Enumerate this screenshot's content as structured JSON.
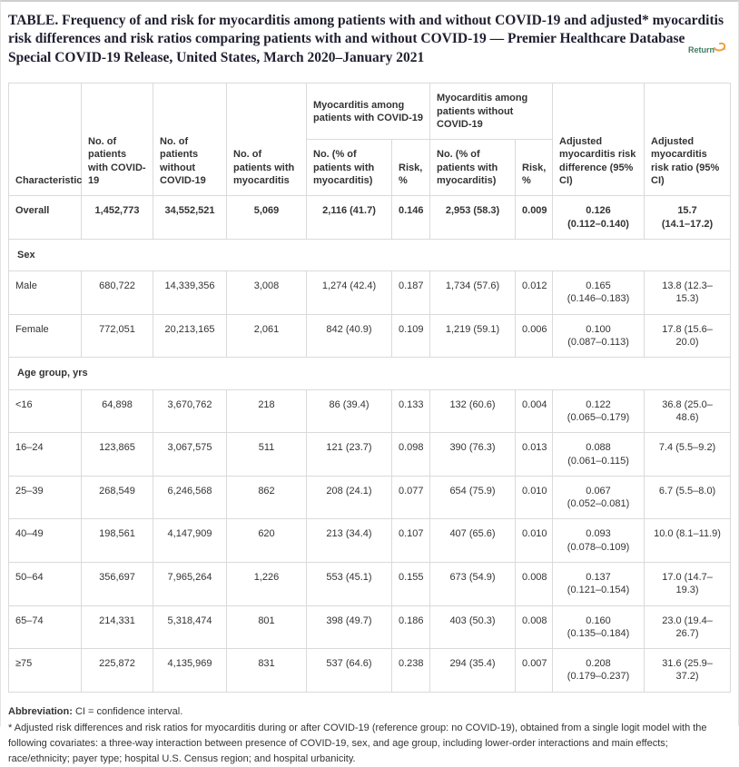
{
  "title": "TABLE. Frequency of and risk for myocarditis among patients with and without COVID-19 and adjusted* myocarditis risk differences and risk ratios comparing patients with and without COVID-19 — Premier Healthcare Database Special COVID-19 Release, United States, March 2020–January 2021",
  "return_label": "Return",
  "accent_colors": {
    "return_text": "#3f7b5e",
    "return_arrow": "#ef9f3f",
    "border": "#dadada",
    "title_text": "#1f1f30"
  },
  "table": {
    "header": {
      "characteristic": "Characteristic",
      "col_with": "No. of patients with COVID-19",
      "col_without": "No. of patients without COVID-19",
      "col_myocarditis": "No. of patients with myocarditis",
      "group_with": "Myocarditis among patients with COVID-19",
      "group_without": "Myocarditis among patients without COVID-19",
      "sub_no_pct_with": "No. (% of patients with myocarditis)",
      "sub_risk_with": "Risk, %",
      "sub_no_pct_without": "No. (% of patients with myocarditis)",
      "sub_risk_without": "Risk, %",
      "col_diff": "Adjusted myocarditis risk difference (95% CI)",
      "col_ratio": "Adjusted myocarditis risk ratio (95% CI)"
    },
    "body": [
      {
        "bold": true,
        "cells": [
          "Overall",
          "1,452,773",
          "34,552,521",
          "5,069",
          "2,116 (41.7)",
          "0.146",
          "2,953 (58.3)",
          "0.009",
          "0.126\n(0.112–0.140)",
          "15.7\n(14.1–17.2)"
        ]
      },
      {
        "section": "Sex"
      },
      {
        "cells": [
          "Male",
          "680,722",
          "14,339,356",
          "3,008",
          "1,274 (42.4)",
          "0.187",
          "1,734 (57.6)",
          "0.012",
          "0.165\n(0.146–0.183)",
          "13.8 (12.3–15.3)"
        ]
      },
      {
        "cells": [
          "Female",
          "772,051",
          "20,213,165",
          "2,061",
          "842 (40.9)",
          "0.109",
          "1,219 (59.1)",
          "0.006",
          "0.100\n(0.087–0.113)",
          "17.8 (15.6–20.0)"
        ]
      },
      {
        "section": "Age group, yrs"
      },
      {
        "cells": [
          "<16",
          "64,898",
          "3,670,762",
          "218",
          "86 (39.4)",
          "0.133",
          "132 (60.6)",
          "0.004",
          "0.122\n(0.065–0.179)",
          "36.8 (25.0–48.6)"
        ]
      },
      {
        "cells": [
          "16–24",
          "123,865",
          "3,067,575",
          "511",
          "121 (23.7)",
          "0.098",
          "390 (76.3)",
          "0.013",
          "0.088\n(0.061–0.115)",
          "7.4 (5.5–9.2)"
        ]
      },
      {
        "cells": [
          "25–39",
          "268,549",
          "6,246,568",
          "862",
          "208 (24.1)",
          "0.077",
          "654 (75.9)",
          "0.010",
          "0.067\n(0.052–0.081)",
          "6.7 (5.5–8.0)"
        ]
      },
      {
        "cells": [
          "40–49",
          "198,561",
          "4,147,909",
          "620",
          "213 (34.4)",
          "0.107",
          "407 (65.6)",
          "0.010",
          "0.093\n(0.078–0.109)",
          "10.0 (8.1–11.9)"
        ]
      },
      {
        "cells": [
          "50–64",
          "356,697",
          "7,965,264",
          "1,226",
          "553 (45.1)",
          "0.155",
          "673 (54.9)",
          "0.008",
          "0.137\n(0.121–0.154)",
          "17.0 (14.7–19.3)"
        ]
      },
      {
        "cells": [
          "65–74",
          "214,331",
          "5,318,474",
          "801",
          "398 (49.7)",
          "0.186",
          "403 (50.3)",
          "0.008",
          "0.160\n(0.135–0.184)",
          "23.0 (19.4–26.7)"
        ]
      },
      {
        "cells": [
          "≥75",
          "225,872",
          "4,135,969",
          "831",
          "537 (64.6)",
          "0.238",
          "294 (35.4)",
          "0.007",
          "0.208\n(0.179–0.237)",
          "31.6 (25.9–37.2)"
        ]
      }
    ]
  },
  "footnotes": {
    "abbr_label": "Abbreviation:",
    "abbr_text": " CI = confidence interval.",
    "asterisk": "* Adjusted risk differences and risk ratios for myocarditis during or after COVID-19 (reference group: no COVID-19), obtained from a single logit model with the following covariates: a three-way interaction between presence of COVID-19, sex, and age group, including lower-order interactions and main effects; race/ethnicity; payer type; hospital U.S. Census region; and hospital urbanicity."
  }
}
